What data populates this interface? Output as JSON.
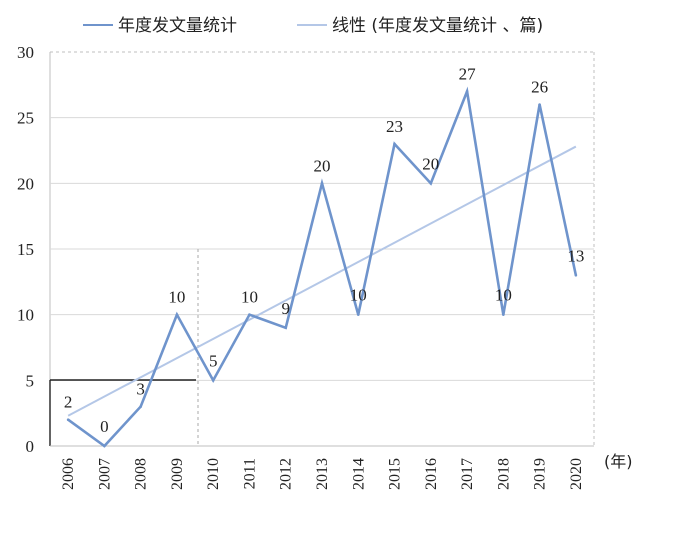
{
  "chart_data": {
    "type": "line",
    "title": "",
    "xlabel": "",
    "ylabel": "",
    "x_unit_label": "(年)",
    "categories": [
      "2006",
      "2007",
      "2008",
      "2009",
      "2010",
      "2011",
      "2012",
      "2013",
      "2014",
      "2015",
      "2016",
      "2017",
      "2018",
      "2019",
      "2020"
    ],
    "series": [
      {
        "name": "年度发文量统计",
        "values": [
          2,
          0,
          3,
          10,
          5,
          10,
          9,
          20,
          10,
          23,
          20,
          27,
          10,
          26,
          13
        ],
        "color": "#6f94cc"
      }
    ],
    "trendline": {
      "name": "线性 (年度发文量统计 、篇)",
      "start": 2.3,
      "end": 22.8,
      "color": "#b4c7e7"
    },
    "ylim": [
      0,
      30
    ],
    "yticks": [
      0,
      5,
      10,
      15,
      20,
      25,
      30
    ],
    "grid": true,
    "legend_position": "top"
  }
}
